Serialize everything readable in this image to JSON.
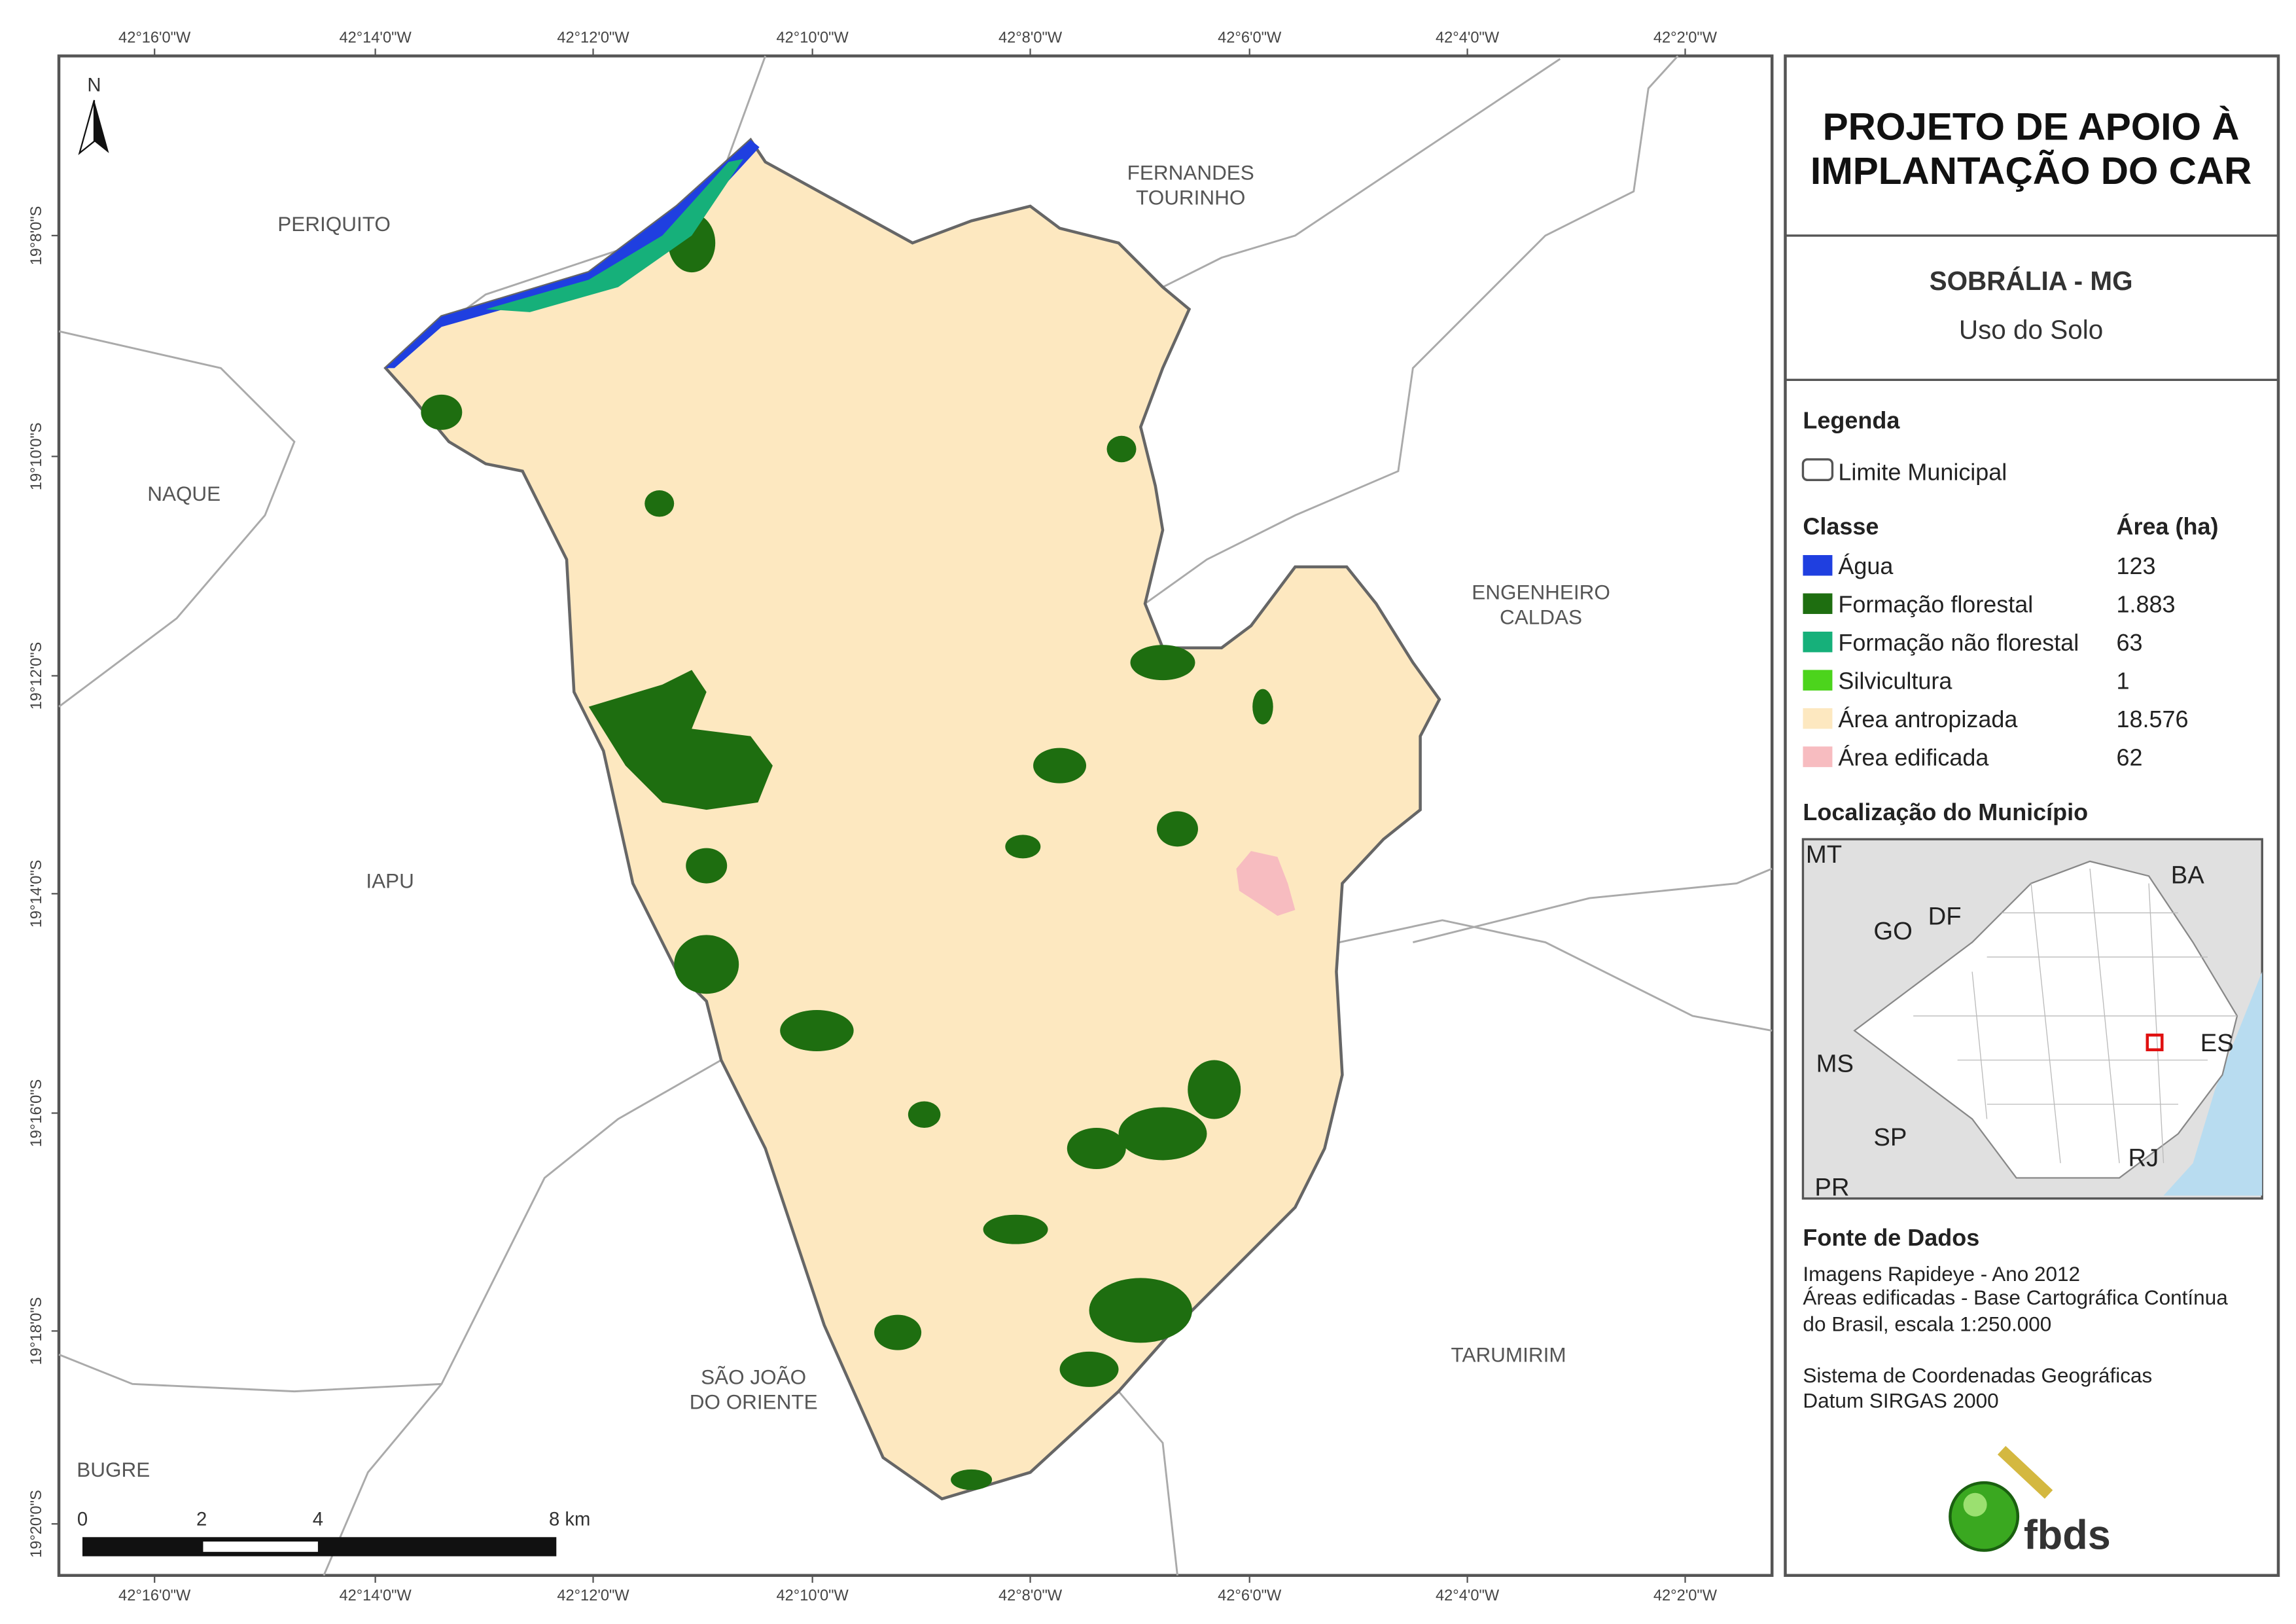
{
  "map": {
    "longitude_ticks": [
      "42°16'0\"W",
      "42°14'0\"W",
      "42°12'0\"W",
      "42°10'0\"W",
      "42°8'0\"W",
      "42°6'0\"W",
      "42°4'0\"W",
      "42°2'0\"W"
    ],
    "latitude_ticks": [
      "19°8'0\"S",
      "19°10'0\"S",
      "19°12'0\"S",
      "19°14'0\"S",
      "19°16'0\"S",
      "19°18'0\"S",
      "19°20'0\"S"
    ],
    "north": "N",
    "places": [
      [
        "PERIQUITO"
      ],
      [
        "FERNANDES",
        "TOURINHO"
      ],
      [
        "NAQUE"
      ],
      [
        "ENGENHEIRO",
        "CALDAS"
      ],
      [
        "IAPU"
      ],
      [
        "SÃO JOÃO",
        "DO ORIENTE"
      ],
      [
        "TARUMIRIM"
      ],
      [
        "BUGRE"
      ]
    ],
    "scale_bar": [
      "0",
      "2",
      "4",
      "8 km"
    ]
  },
  "panel": {
    "title": [
      "PROJETO DE APOIO À",
      "IMPLANTAÇÃO DO CAR"
    ],
    "municipality": "SOBRÁLIA - MG",
    "subtitle": "Uso do Solo",
    "legend_title": "Legenda",
    "boundary": "Limite Municipal",
    "class_header": "Classe",
    "area_header": "Área (ha)",
    "classes": [
      {
        "name": "Água",
        "area": "123",
        "color": "#1f3fe0"
      },
      {
        "name": "Formação florestal",
        "area": "1.883",
        "color": "#1e6e10"
      },
      {
        "name": "Formação não florestal",
        "area": "63",
        "color": "#16b07a"
      },
      {
        "name": "Silvicultura",
        "area": "1",
        "color": "#4cd41c"
      },
      {
        "name": "Área antropizada",
        "area": "18.576",
        "color": "#fde8c0"
      },
      {
        "name": "Área edificada",
        "area": "62",
        "color": "#f7bcc0"
      }
    ],
    "location_title": "Localização do Município",
    "inset_labels": [
      "MT",
      "BA",
      "GO",
      "DF",
      "MS",
      "ES",
      "SP",
      "RJ",
      "PR"
    ],
    "sources_title": "Fonte de Dados",
    "sources": [
      "Imagens Rapideye - Ano 2012",
      "Áreas edificadas - Base Cartográfica Contínua",
      "do Brasil, escala 1:250.000",
      "Sistema de Coordenadas Geográficas",
      "Datum SIRGAS 2000"
    ],
    "logo": "fbds"
  }
}
